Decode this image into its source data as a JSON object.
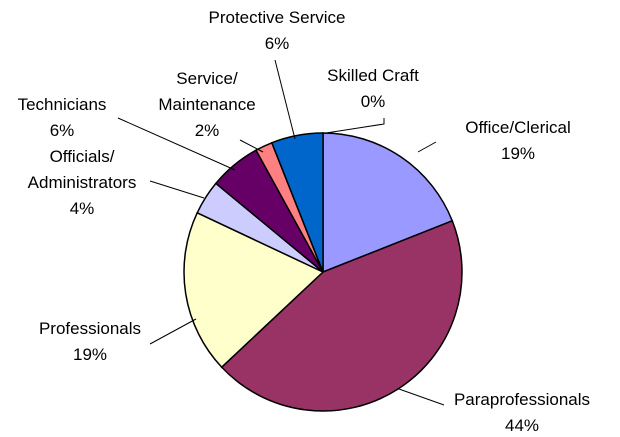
{
  "chart_data": {
    "type": "pie",
    "slices": [
      {
        "label": "Office/Clerical",
        "value": 19,
        "pct_label": "19%",
        "color": "#9999ff"
      },
      {
        "label": "Paraprofessionals",
        "value": 44,
        "pct_label": "44%",
        "color": "#993366"
      },
      {
        "label": "Professionals",
        "value": 19,
        "pct_label": "19%",
        "color": "#ffffcc"
      },
      {
        "label": "Officials/ Administrators",
        "value": 4,
        "pct_label": "4%",
        "color": "#ccccff"
      },
      {
        "label": "Technicians",
        "value": 6,
        "pct_label": "6%",
        "color": "#660066"
      },
      {
        "label": "Service/ Maintenance",
        "value": 2,
        "pct_label": "2%",
        "color": "#ff8080"
      },
      {
        "label": "Protective Service",
        "value": 6,
        "pct_label": "6%",
        "color": "#0066cc"
      },
      {
        "label": "Skilled Craft",
        "value": 0,
        "pct_label": "0%",
        "color": "#ccffff"
      }
    ],
    "start_angle_deg": 0,
    "direction": "clockwise",
    "legend": "none"
  }
}
